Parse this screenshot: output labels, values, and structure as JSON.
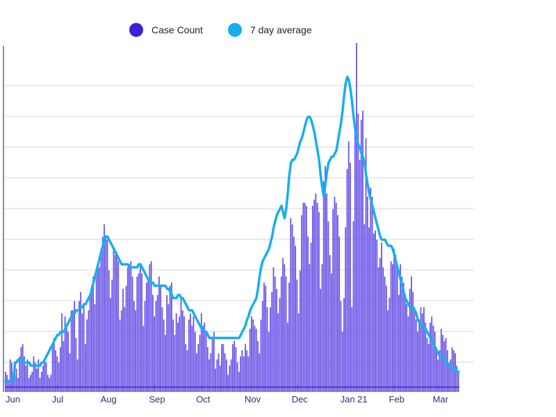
{
  "legend": {
    "items": [
      {
        "label": "Case Count",
        "color": "#3a23d6",
        "marker": "circle"
      },
      {
        "label": "7 day average",
        "color": "#17aef0",
        "marker": "circle"
      }
    ],
    "placement": "top-center"
  },
  "chart_data": {
    "type": "bar",
    "title": "",
    "xlabel": "",
    "ylabel": "",
    "y_units_note": "relative gridline units (y tick labels cropped from view)",
    "ylim": [
      0,
      11
    ],
    "grid": true,
    "x_tick_labels": [
      "Jun",
      "Jul",
      "Aug",
      "Sep",
      "Oct",
      "Nov",
      "Dec",
      "Jan 21",
      "Feb",
      "Mar"
    ],
    "x_tick_day_index": [
      0,
      30,
      61,
      92,
      122,
      153,
      183,
      214,
      245,
      273
    ],
    "start_date": "Jun 1",
    "series": [
      {
        "name": "Case Count",
        "type": "bar",
        "color": "#6a55e6",
        "values": [
          0.5,
          0.4,
          0.2,
          0.9,
          0.8,
          0.5,
          0.4,
          0.6,
          0.3,
          1.0,
          1.3,
          1.4,
          1.0,
          0.7,
          0.9,
          0.3,
          0.4,
          0.5,
          1.0,
          0.8,
          0.6,
          0.9,
          0.3,
          0.5,
          0.7,
          0.9,
          0.8,
          0.4,
          0.3,
          0.4,
          1.4,
          1.6,
          1.2,
          1.0,
          0.8,
          1.3,
          2.4,
          1.5,
          2.3,
          2.0,
          1.8,
          1.1,
          2.5,
          2.5,
          2.8,
          1.6,
          0.9,
          2.8,
          3.1,
          2.4,
          2.7,
          1.4,
          2.2,
          2.5,
          3.0,
          3.3,
          3.6,
          2.7,
          3.8,
          3.9,
          3.9,
          4.5,
          4.9,
          5.3,
          4.9,
          4.8,
          3.8,
          2.9,
          3.5,
          4.5,
          4.3,
          4.4,
          4.1,
          2.2,
          2.5,
          3.2,
          2.6,
          3.3,
          3.9,
          4.0,
          4.1,
          3.6,
          2.8,
          2.5,
          3.6,
          3.7,
          4.0,
          3.7,
          2.0,
          2.8,
          3.4,
          3.5,
          4.0,
          4.1,
          3.0,
          2.3,
          2.8,
          3.0,
          3.6,
          3.3,
          2.6,
          2.2,
          1.7,
          3.0,
          2.7,
          3.3,
          3.4,
          2.2,
          1.7,
          2.4,
          2.1,
          2.3,
          2.9,
          2.5,
          2.3,
          1.4,
          1.2,
          2.2,
          2.4,
          2.0,
          2.3,
          1.8,
          1.1,
          1.4,
          1.7,
          2.4,
          2.0,
          2.1,
          1.8,
          1.3,
          0.9,
          1.1,
          1.6,
          1.8,
          0.6,
          0.9,
          1.1,
          0.7,
          1.4,
          1.4,
          1.1,
          0.9,
          0.4,
          0.7,
          0.9,
          1.4,
          1.5,
          1.3,
          0.8,
          0.5,
          1.0,
          1.2,
          1.0,
          1.4,
          1.2,
          1.0,
          1.9,
          2.3,
          2.2,
          2.0,
          1.9,
          1.5,
          1.1,
          2.2,
          2.8,
          3.4,
          3.3,
          2.6,
          1.8,
          2.6,
          3.1,
          3.9,
          3.6,
          3.2,
          2.4,
          2.9,
          3.6,
          4.2,
          4.0,
          3.6,
          2.1,
          3.4,
          5.5,
          5.3,
          4.9,
          4.6,
          3.5,
          2.4,
          3.8,
          5.6,
          6.0,
          6.0,
          5.9,
          4.9,
          4.0,
          4.7,
          5.9,
          6.1,
          6.3,
          6.0,
          5.7,
          3.2,
          4.0,
          6.7,
          7.2,
          6.3,
          5.4,
          4.3,
          3.7,
          5.8,
          6.2,
          6.0,
          5.6,
          4.9,
          2.8,
          1.8,
          2.9,
          5.2,
          7.1,
          8.0,
          7.3,
          2.6,
          5.4,
          8.6,
          11.2,
          8.9,
          7.4,
          8.7,
          9.0,
          5.3,
          8.1,
          6.2,
          5.2,
          6.5,
          6.2,
          5.0,
          5.1,
          4.8,
          3.9,
          4.2,
          4.7,
          3.9,
          3.6,
          3.3,
          2.5,
          2.9,
          4.1,
          4.0,
          4.5,
          4.3,
          3.8,
          3.0,
          4.0,
          3.6,
          3.4,
          3.0,
          2.7,
          2.3,
          3.2,
          3.6,
          3.1,
          2.6,
          2.2,
          1.8,
          2.2,
          2.6,
          2.4,
          2.6,
          2.1,
          1.6,
          1.4,
          2.1,
          2.3,
          2.0,
          1.8,
          1.3,
          0.9,
          1.2,
          1.9,
          1.7,
          1.5,
          1.6,
          1.2,
          0.8,
          0.9,
          1.3,
          1.2,
          1.1,
          0.7,
          0.5
        ]
      },
      {
        "name": "7 day average",
        "type": "line",
        "color": "#17aef0",
        "values": [
          0.2,
          0.2,
          0.2,
          0.2,
          0.2,
          0.2,
          0.8,
          0.8,
          0.9,
          0.9,
          0.9,
          0.9,
          0.8,
          0.8,
          0.8,
          0.8,
          0.7,
          0.7,
          0.7,
          0.7,
          0.7,
          0.7,
          0.7,
          0.8,
          0.8,
          0.9,
          1.0,
          1.1,
          1.2,
          1.3,
          1.4,
          1.5,
          1.6,
          1.7,
          1.7,
          1.8,
          1.8,
          1.8,
          1.9,
          2.0,
          2.1,
          2.2,
          2.3,
          2.4,
          2.4,
          2.5,
          2.5,
          2.5,
          2.6,
          2.6,
          2.7,
          2.7,
          2.8,
          2.9,
          3.0,
          3.2,
          3.4,
          3.6,
          3.8,
          4.0,
          4.2,
          4.4,
          4.6,
          4.8,
          4.9,
          4.9,
          4.8,
          4.7,
          4.6,
          4.5,
          4.4,
          4.3,
          4.2,
          4.1,
          4.0,
          4.0,
          4.0,
          4.0,
          4.0,
          3.9,
          3.9,
          3.9,
          3.9,
          3.9,
          3.9,
          4.0,
          4.0,
          3.9,
          3.8,
          3.7,
          3.6,
          3.5,
          3.5,
          3.4,
          3.4,
          3.3,
          3.3,
          3.3,
          3.3,
          3.3,
          3.3,
          3.3,
          3.3,
          3.2,
          3.2,
          3.1,
          3.0,
          2.9,
          2.9,
          2.9,
          3.0,
          3.0,
          2.9,
          2.9,
          2.8,
          2.7,
          2.6,
          2.5,
          2.5,
          2.5,
          2.4,
          2.3,
          2.2,
          2.1,
          2.0,
          1.9,
          1.9,
          1.8,
          1.8,
          1.7,
          1.6,
          1.6,
          1.6,
          1.6,
          1.6,
          1.6,
          1.6,
          1.6,
          1.6,
          1.6,
          1.6,
          1.6,
          1.6,
          1.6,
          1.6,
          1.6,
          1.6,
          1.6,
          1.6,
          1.6,
          1.7,
          1.8,
          1.9,
          2.0,
          2.2,
          2.3,
          2.5,
          2.6,
          2.7,
          2.8,
          2.9,
          3.2,
          3.6,
          3.9,
          4.1,
          4.2,
          4.3,
          4.4,
          4.5,
          4.7,
          4.9,
          5.2,
          5.4,
          5.6,
          5.7,
          5.8,
          5.9,
          5.7,
          5.5,
          5.8,
          6.3,
          6.9,
          7.3,
          7.4,
          7.4,
          7.5,
          7.6,
          7.8,
          8.0,
          8.1,
          8.3,
          8.5,
          8.7,
          8.8,
          8.8,
          8.7,
          8.5,
          8.3,
          8.0,
          7.7,
          7.4,
          6.9,
          6.5,
          6.2,
          6.6,
          7.0,
          7.3,
          7.4,
          7.5,
          7.5,
          7.6,
          7.7,
          8.0,
          8.3,
          8.6,
          9.0,
          9.5,
          9.9,
          10.1,
          10.0,
          9.7,
          9.3,
          8.8,
          8.4,
          8.1,
          7.9,
          7.8,
          7.6,
          7.5,
          7.3,
          6.9,
          6.6,
          6.3,
          6.1,
          5.9,
          5.7,
          5.5,
          5.3,
          5.1,
          4.9,
          4.8,
          4.8,
          4.8,
          4.7,
          4.6,
          4.6,
          4.6,
          4.5,
          4.3,
          4.1,
          3.9,
          3.7,
          3.5,
          3.3,
          3.1,
          2.9,
          2.8,
          2.7,
          2.6,
          2.6,
          2.6,
          2.5,
          2.4,
          2.2,
          2.1,
          2.0,
          1.9,
          1.9,
          1.9,
          1.8,
          1.7,
          1.6,
          1.5,
          1.4,
          1.3,
          1.2,
          1.1,
          1.0,
          1.0,
          1.0,
          0.9,
          0.8,
          0.7,
          0.7,
          0.7,
          0.6,
          0.6,
          0.6,
          0.5,
          0.5
        ]
      }
    ],
    "legend_placement": "top-center"
  }
}
